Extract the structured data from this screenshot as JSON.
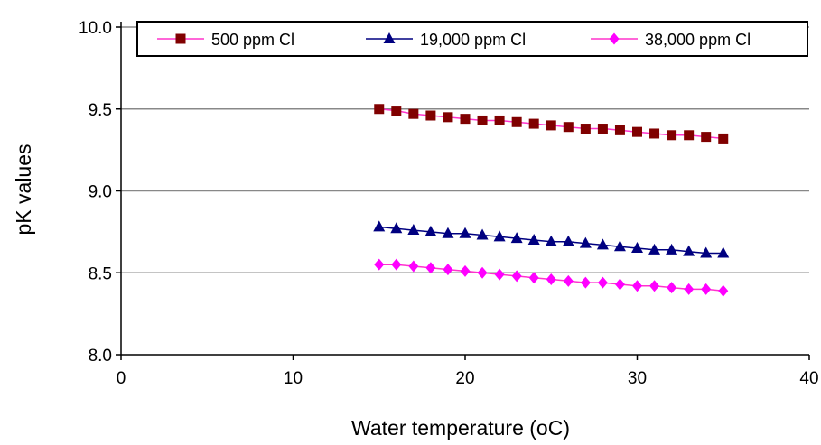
{
  "chart_data": {
    "type": "line",
    "title": "",
    "xlabel": "Water temperature (oC)",
    "ylabel": "pK values",
    "xlim": [
      0,
      40
    ],
    "ylim": [
      8.0,
      10.0
    ],
    "x_ticks": [
      0,
      10,
      20,
      30,
      40
    ],
    "y_ticks": [
      8.0,
      8.5,
      9.0,
      9.5,
      10.0
    ],
    "x_tick_labels": [
      "0",
      "10",
      "20",
      "30",
      "40"
    ],
    "y_tick_labels": [
      "8.0",
      "8.5",
      "9.0",
      "9.5",
      "10.0"
    ],
    "grid": "horizontal",
    "legend_position": "top",
    "x": [
      15,
      16,
      17,
      18,
      19,
      20,
      21,
      22,
      23,
      24,
      25,
      26,
      27,
      28,
      29,
      30,
      31,
      32,
      33,
      34,
      35
    ],
    "series": [
      {
        "name": "500 ppm Cl",
        "line_color": "#ff33cc",
        "marker_color": "#800000",
        "marker": "square",
        "values": [
          9.5,
          9.49,
          9.47,
          9.46,
          9.45,
          9.44,
          9.43,
          9.43,
          9.42,
          9.41,
          9.4,
          9.39,
          9.38,
          9.38,
          9.37,
          9.36,
          9.35,
          9.34,
          9.34,
          9.33,
          9.32
        ]
      },
      {
        "name": "19,000 ppm Cl",
        "line_color": "#000080",
        "marker_color": "#000080",
        "marker": "triangle",
        "values": [
          8.78,
          8.77,
          8.76,
          8.75,
          8.74,
          8.74,
          8.73,
          8.72,
          8.71,
          8.7,
          8.69,
          8.69,
          8.68,
          8.67,
          8.66,
          8.65,
          8.64,
          8.64,
          8.63,
          8.62,
          8.62
        ]
      },
      {
        "name": "38,000 ppm Cl",
        "line_color": "#ff33cc",
        "marker_color": "#ff00ff",
        "marker": "diamond",
        "values": [
          8.55,
          8.55,
          8.54,
          8.53,
          8.52,
          8.51,
          8.5,
          8.49,
          8.48,
          8.47,
          8.46,
          8.45,
          8.44,
          8.44,
          8.43,
          8.42,
          8.42,
          8.41,
          8.4,
          8.4,
          8.39
        ]
      }
    ]
  }
}
